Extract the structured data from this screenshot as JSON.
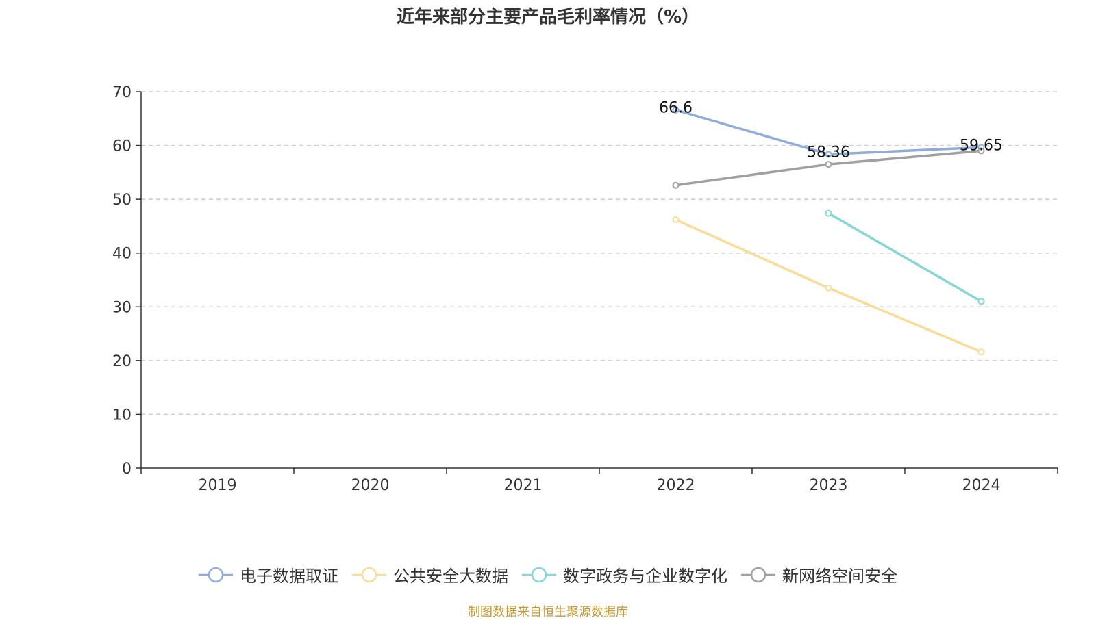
{
  "chart_data": {
    "type": "line",
    "title": "近年来部分主要产品毛利率情况（%）",
    "xlabel": "",
    "ylabel": "",
    "categories": [
      "2019",
      "2020",
      "2021",
      "2022",
      "2023",
      "2024"
    ],
    "ylim": [
      0,
      70
    ],
    "yticks": [
      0,
      10,
      20,
      30,
      40,
      50,
      60,
      70
    ],
    "grid": true,
    "legend_position": "bottom",
    "series": [
      {
        "name": "电子数据取证",
        "color": "#8eaddc",
        "values": [
          null,
          null,
          null,
          66.6,
          58.36,
          59.65
        ],
        "labels": [
          null,
          null,
          null,
          "66.6",
          "58.36",
          "59.65"
        ]
      },
      {
        "name": "公共安全大数据",
        "color": "#fbdb98",
        "values": [
          null,
          null,
          null,
          46.2,
          33.5,
          21.6
        ],
        "labels": [
          null,
          null,
          null,
          null,
          null,
          null
        ]
      },
      {
        "name": "数字政务与企业数字化",
        "color": "#86d6d8",
        "values": [
          null,
          null,
          null,
          null,
          47.4,
          31.0
        ],
        "labels": [
          null,
          null,
          null,
          null,
          null,
          null
        ]
      },
      {
        "name": "新网络空间安全",
        "color": "#a0a0a0",
        "values": [
          null,
          null,
          null,
          52.6,
          56.5,
          59.0
        ],
        "labels": [
          null,
          null,
          null,
          null,
          null,
          null
        ]
      }
    ]
  },
  "source_note": "制图数据来自恒生聚源数据库"
}
